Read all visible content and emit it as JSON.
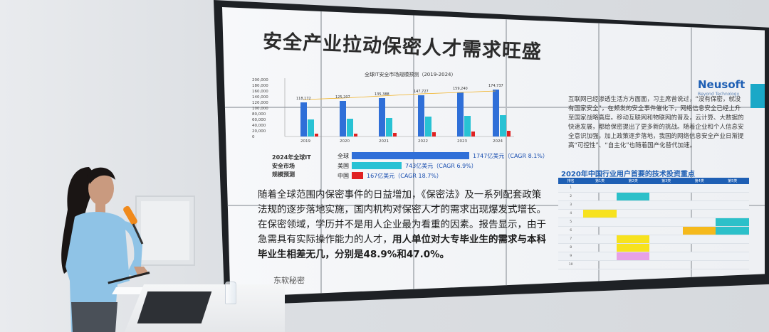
{
  "slide": {
    "title": "安全产业拉动保密人才需求旺盛",
    "chart": {
      "title": "全球IT安全市场规模预测（2019-2024）",
      "y_ticks": [
        "200,000",
        "180,000",
        "160,000",
        "140,000",
        "120,000",
        "100,000",
        "80,000",
        "60,000",
        "40,000",
        "20,000",
        "0"
      ],
      "x_ticks": [
        "2019",
        "2020",
        "2021",
        "2022",
        "2023",
        "2024"
      ],
      "top_labels": [
        "118,172",
        "125,207",
        "135,388",
        "147,727",
        "159,240",
        "174,737"
      ]
    },
    "market": {
      "side_lines": [
        "2024年全球IT",
        "安全市场",
        "规模预测"
      ],
      "rows": [
        {
          "label": "全球",
          "value": "1747亿美元（CAGR 8.1%）",
          "color": "#2f6fd8"
        },
        {
          "label": "美国",
          "value": "743亿美元（CAGR 6.9%）",
          "color": "#28c2d4"
        },
        {
          "label": "中国",
          "value": "167亿美元（CAGR 18.7%）",
          "color": "#e02222"
        }
      ]
    },
    "body_lines": [
      "随着全球范围内保密事件的日益增加，《保密法》及一系列配套政策",
      "法规的逐步落地实施，国内机构对保密人才的需求出现爆发式增长。",
      "在保密领域，学历并不是用人企业最为看重的因素。报告显示，由于",
      "急需具有实际操作能力的人才，"
    ],
    "body_bold_1": "用人单位对大专毕业生的需求与本科",
    "body_bold_2": "毕业生相差无几，分别是48.9%和47.0%。",
    "footer": "东软秘密",
    "logo": "Neusoft",
    "logo_sub": "Beyond Technology",
    "right_para": "互联网已经渗透生活方方面面，习主席曾说过，“没有保密，就没有国家安全”，在频发的安全事件催化下，网络信息安全已经上升至国家战略高度。移动互联网和物联网的普及，云计算、大数据的快速发展，都给保密提出了更多新的挑战。随着企业和个人信息安全意识加强，加上政策逐步落地，我国的网络信息安全产业日渐提高“可控性”、“自主化”也随着国产化替代加速。",
    "table_title": "2020年中国行业用户首要的技术投资重点",
    "table_rank_header": "排名",
    "table_headers": [
      "第1类",
      "第2类",
      "第3类",
      "第4类",
      "第5类"
    ],
    "table_ranks": [
      "1",
      "2",
      "3",
      "4",
      "5",
      "6",
      "7",
      "8",
      "9",
      "10"
    ]
  },
  "colors": {
    "title": "#2b2b2b",
    "accent_blue": "#1e5fb4",
    "bar_global": "#2f6fd8",
    "bar_us": "#28c2d4",
    "bar_china": "#e02222"
  }
}
